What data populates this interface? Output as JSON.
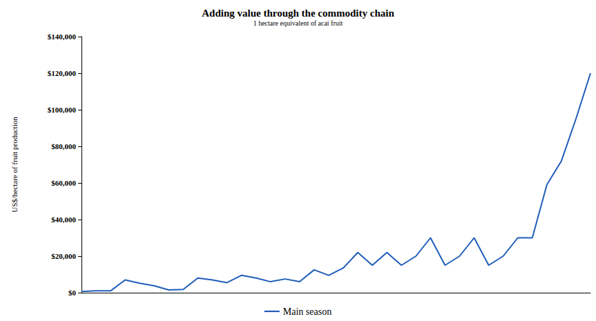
{
  "chart_data": {
    "type": "line",
    "title": "Adding value through the commodity chain",
    "subtitle": "1 hectare equivalent of acai fruit",
    "y_label": "US$/hectare of fruit production",
    "categories": [
      null,
      null,
      null,
      null,
      null,
      null,
      null,
      null,
      null,
      null,
      null,
      null,
      null,
      null,
      null,
      null,
      null,
      null,
      null,
      null,
      null,
      null,
      null,
      null,
      null,
      null,
      null,
      null,
      null,
      null,
      null,
      null,
      null,
      null,
      null,
      null
    ],
    "series": [
      {
        "name": "Main season",
        "color": "#1f5cb8",
        "values": [
          700,
          1000,
          1000,
          7000,
          5200,
          3800,
          1500,
          1800,
          8000,
          7000,
          5500,
          9500,
          8000,
          6000,
          7500,
          6000,
          12500,
          9500,
          13500,
          22000,
          15000,
          22000,
          15000,
          20000,
          30000,
          15000,
          20000,
          30000,
          15000,
          20000,
          30000,
          30000,
          59000,
          72000,
          95000,
          120000
        ]
      }
    ],
    "ylim": [
      0,
      140000
    ],
    "yticks": [
      {
        "value": 0,
        "label": "$0"
      },
      {
        "value": 20000,
        "label": "$20,000"
      },
      {
        "value": 40000,
        "label": "$40,000"
      },
      {
        "value": 60000,
        "label": "$60,000"
      },
      {
        "value": 80000,
        "label": "$80,000"
      },
      {
        "value": 100000,
        "label": "$100,000"
      },
      {
        "value": 120000,
        "label": "$120,000"
      },
      {
        "value": 140000,
        "label": "$140,000"
      }
    ],
    "grid": false,
    "legend": "bottom",
    "tick_labels": "y"
  }
}
